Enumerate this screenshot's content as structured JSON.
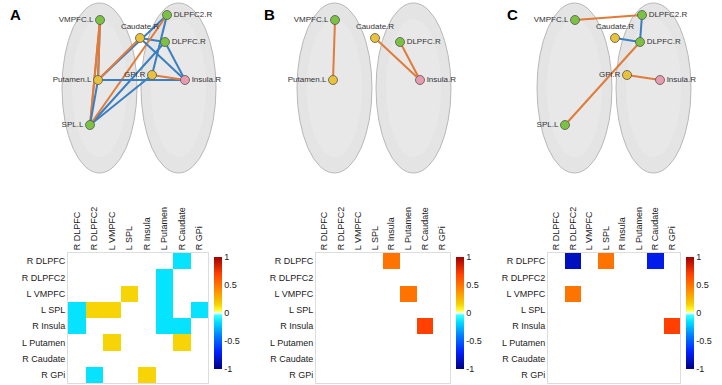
{
  "nodes": {
    "labels": [
      "DLPFC.R",
      "DLPFC2.R",
      "VMPFC.L",
      "SPL.L",
      "Insula.R",
      "Putamen.L",
      "Caudate.R",
      "GPi.R"
    ],
    "colors": [
      "#7cc242",
      "#7cc242",
      "#7cc242",
      "#7cc242",
      "#e89ab0",
      "#e8c23a",
      "#e8c23a",
      "#e8c23a"
    ]
  },
  "chart_data": [
    {
      "type": "heatmap",
      "panel": "A",
      "categories": [
        "R DLPFC",
        "R DLPFC2",
        "L VMPFC",
        "L SPL",
        "R Insula",
        "L Putamen",
        "R Caudate",
        "R GPi"
      ],
      "cells": [
        [
          0,
          0,
          0,
          0,
          0,
          0,
          -0.15,
          0
        ],
        [
          0,
          0,
          0,
          0,
          0,
          -0.15,
          0,
          0
        ],
        [
          0,
          0,
          0,
          0.15,
          0,
          -0.15,
          0,
          0
        ],
        [
          -0.15,
          0.15,
          0.15,
          0,
          0,
          -0.15,
          0,
          -0.15
        ],
        [
          -0.15,
          0,
          0,
          0,
          0,
          -0.15,
          -0.15,
          0
        ],
        [
          0,
          0,
          0.15,
          0,
          0,
          0,
          0.15,
          0
        ],
        [
          0,
          0,
          0,
          0,
          0,
          0,
          0,
          0
        ],
        [
          0,
          -0.15,
          0,
          0,
          0.15,
          0,
          0,
          0
        ]
      ],
      "colorbar": {
        "range": [
          -1,
          1
        ],
        "ticks": [
          -1,
          -0.5,
          0,
          0.5,
          1
        ]
      }
    },
    {
      "type": "heatmap",
      "panel": "B",
      "categories": [
        "R DLPFC",
        "R DLPFC2",
        "L VMPFC",
        "L SPL",
        "R Insula",
        "L Putamen",
        "R Caudate",
        "R GPi"
      ],
      "cells": [
        [
          0,
          0,
          0,
          0,
          0.5,
          0,
          0,
          0
        ],
        [
          0,
          0,
          0,
          0,
          0,
          0,
          0,
          0
        ],
        [
          0,
          0,
          0,
          0,
          0,
          0.5,
          0,
          0
        ],
        [
          0,
          0,
          0,
          0,
          0,
          0,
          0,
          0
        ],
        [
          0,
          0,
          0,
          0,
          0,
          0,
          0.7,
          0
        ],
        [
          0,
          0,
          0,
          0,
          0,
          0,
          0,
          0
        ],
        [
          0,
          0,
          0,
          0,
          0,
          0,
          0,
          0
        ],
        [
          0,
          0,
          0,
          0,
          0,
          0,
          0,
          0
        ]
      ],
      "colorbar": {
        "range": [
          -1,
          1
        ],
        "ticks": [
          -1,
          -0.5,
          0,
          0.5,
          1
        ]
      }
    },
    {
      "type": "heatmap",
      "panel": "C",
      "categories": [
        "R DLPFC",
        "R DLPFC2",
        "L VMPFC",
        "L SPL",
        "R Insula",
        "L Putamen",
        "R Caudate",
        "R GPi"
      ],
      "cells": [
        [
          0,
          -0.85,
          0,
          0.5,
          0,
          0,
          -0.75,
          0
        ],
        [
          0,
          0,
          0,
          0,
          0,
          0,
          0,
          0
        ],
        [
          0,
          0.5,
          0,
          0,
          0,
          0,
          0,
          0
        ],
        [
          0,
          0,
          0,
          0,
          0,
          0,
          0,
          0
        ],
        [
          0,
          0,
          0,
          0,
          0,
          0,
          0,
          0.7
        ],
        [
          0,
          0,
          0,
          0,
          0,
          0,
          0,
          0
        ],
        [
          0,
          0,
          0,
          0,
          0,
          0,
          0,
          0
        ],
        [
          0,
          0,
          0,
          0,
          0,
          0,
          0,
          0
        ]
      ],
      "colorbar": {
        "range": [
          -1,
          1
        ],
        "ticks": [
          -1,
          -0.5,
          0,
          0.5,
          1
        ]
      }
    }
  ]
}
